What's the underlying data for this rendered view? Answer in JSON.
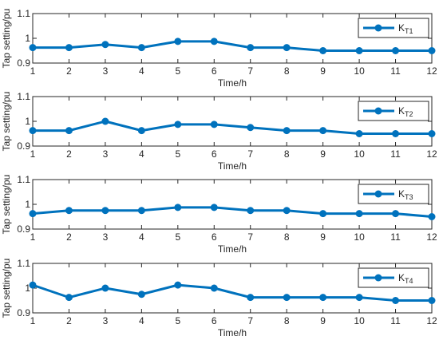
{
  "chart_data": [
    {
      "type": "line",
      "x": [
        1,
        2,
        3,
        4,
        5,
        6,
        7,
        8,
        9,
        10,
        11,
        12
      ],
      "xlim": [
        1,
        12
      ],
      "ylim": [
        0.9,
        1.1
      ],
      "xticks": [
        "1",
        "2",
        "3",
        "4",
        "5",
        "6",
        "7",
        "8",
        "9",
        "10",
        "11",
        "12"
      ],
      "yticks": [
        "0.9",
        "1",
        "1.1"
      ],
      "xlabel": "Time/h",
      "ylabel": "Tap setting/pu",
      "legend_position": "top-right",
      "series": [
        {
          "name": "K",
          "name_sub": "T1",
          "color": "#0072BD",
          "values": [
            0.9625,
            0.9625,
            0.975,
            0.9625,
            0.9875,
            0.9875,
            0.9625,
            0.9625,
            0.95,
            0.95,
            0.95,
            0.95
          ]
        }
      ]
    },
    {
      "type": "line",
      "x": [
        1,
        2,
        3,
        4,
        5,
        6,
        7,
        8,
        9,
        10,
        11,
        12
      ],
      "xlim": [
        1,
        12
      ],
      "ylim": [
        0.9,
        1.1
      ],
      "xticks": [
        "1",
        "2",
        "3",
        "4",
        "5",
        "6",
        "7",
        "8",
        "9",
        "10",
        "11",
        "12"
      ],
      "yticks": [
        "0.9",
        "1",
        "1.1"
      ],
      "xlabel": "Time/h",
      "ylabel": "Tap setting/pu",
      "legend_position": "top-right",
      "series": [
        {
          "name": "K",
          "name_sub": "T2",
          "color": "#0072BD",
          "values": [
            0.9625,
            0.9625,
            1.0,
            0.9625,
            0.9875,
            0.9875,
            0.975,
            0.9625,
            0.9625,
            0.95,
            0.95,
            0.95
          ]
        }
      ]
    },
    {
      "type": "line",
      "x": [
        1,
        2,
        3,
        4,
        5,
        6,
        7,
        8,
        9,
        10,
        11,
        12
      ],
      "xlim": [
        1,
        12
      ],
      "ylim": [
        0.9,
        1.1
      ],
      "xticks": [
        "1",
        "2",
        "3",
        "4",
        "5",
        "6",
        "7",
        "8",
        "9",
        "10",
        "11",
        "12"
      ],
      "yticks": [
        "0.9",
        "1",
        "1.1"
      ],
      "xlabel": "Time/h",
      "ylabel": "Tap setting/pu",
      "legend_position": "top-right",
      "series": [
        {
          "name": "K",
          "name_sub": "T3",
          "color": "#0072BD",
          "values": [
            0.9625,
            0.975,
            0.975,
            0.975,
            0.9875,
            0.9875,
            0.975,
            0.975,
            0.9625,
            0.9625,
            0.9625,
            0.95
          ]
        }
      ]
    },
    {
      "type": "line",
      "x": [
        1,
        2,
        3,
        4,
        5,
        6,
        7,
        8,
        9,
        10,
        11,
        12
      ],
      "xlim": [
        1,
        12
      ],
      "ylim": [
        0.9,
        1.1
      ],
      "xticks": [
        "1",
        "2",
        "3",
        "4",
        "5",
        "6",
        "7",
        "8",
        "9",
        "10",
        "11",
        "12"
      ],
      "yticks": [
        "0.9",
        "1",
        "1.1"
      ],
      "xlabel": "Time/h",
      "ylabel": "Tap setting/pu",
      "legend_position": "top-right",
      "series": [
        {
          "name": "K",
          "name_sub": "T4",
          "color": "#0072BD",
          "values": [
            1.0125,
            0.9625,
            1.0,
            0.975,
            1.0125,
            1.0,
            0.9625,
            0.9625,
            0.9625,
            0.9625,
            0.95,
            0.95
          ]
        }
      ]
    }
  ]
}
